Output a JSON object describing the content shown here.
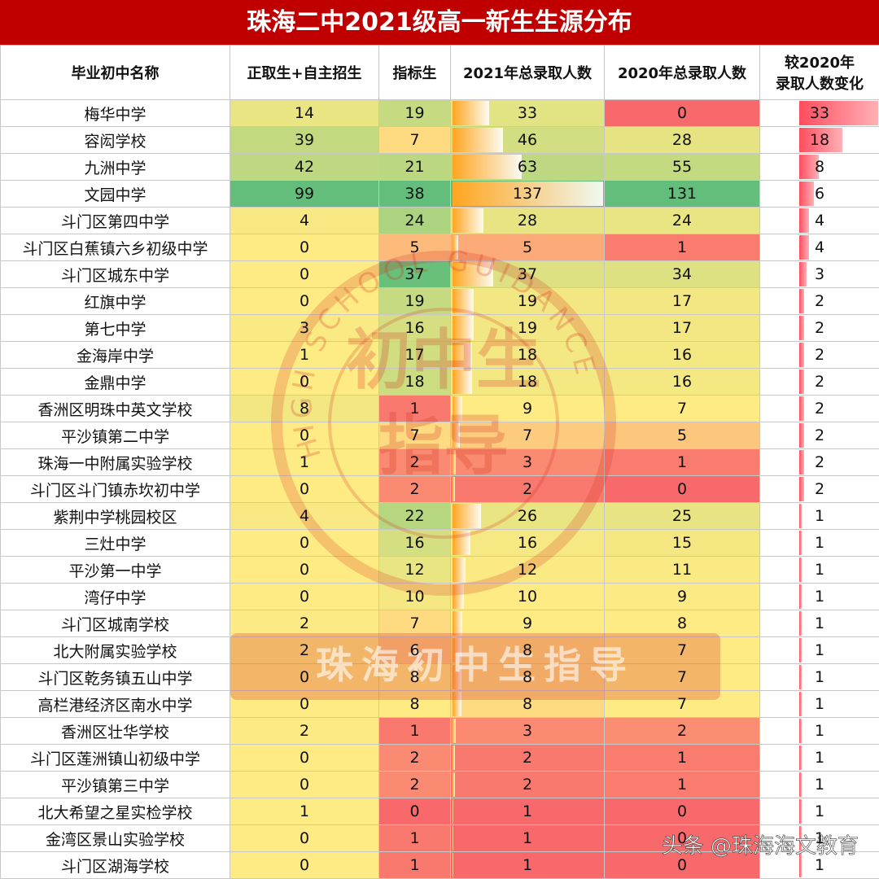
{
  "table": {
    "title": "珠海二中2021级高一新生生源分布",
    "headers": [
      "毕业初中名称",
      "正取生+自主招生",
      "指标生",
      "2021年总录取人数",
      "2020年总录取人数",
      "较2020年\n录取人数变化"
    ],
    "rows": [
      [
        "梅华中学",
        14,
        19,
        33,
        0,
        33
      ],
      [
        "容闳学校",
        39,
        7,
        46,
        28,
        18
      ],
      [
        "九洲中学",
        42,
        21,
        63,
        55,
        8
      ],
      [
        "文园中学",
        99,
        38,
        137,
        131,
        6
      ],
      [
        "斗门区第四中学",
        4,
        24,
        28,
        24,
        4
      ],
      [
        "斗门区白蕉镇六乡初级中学",
        0,
        5,
        5,
        1,
        4
      ],
      [
        "斗门区城东中学",
        0,
        37,
        37,
        34,
        3
      ],
      [
        "红旗中学",
        0,
        19,
        19,
        17,
        2
      ],
      [
        "第七中学",
        3,
        16,
        19,
        17,
        2
      ],
      [
        "金海岸中学",
        1,
        17,
        18,
        16,
        2
      ],
      [
        "金鼎中学",
        0,
        18,
        18,
        16,
        2
      ],
      [
        "香洲区明珠中英文学校",
        8,
        1,
        9,
        7,
        2
      ],
      [
        "平沙镇第二中学",
        0,
        7,
        7,
        5,
        2
      ],
      [
        "珠海一中附属实验学校",
        1,
        2,
        3,
        1,
        2
      ],
      [
        "斗门区斗门镇赤坎初中学",
        0,
        2,
        2,
        0,
        2
      ],
      [
        "紫荆中学桃园校区",
        4,
        22,
        26,
        25,
        1
      ],
      [
        "三灶中学",
        0,
        16,
        16,
        15,
        1
      ],
      [
        "平沙第一中学",
        0,
        12,
        12,
        11,
        1
      ],
      [
        "湾仔中学",
        0,
        10,
        10,
        9,
        1
      ],
      [
        "斗门区城南学校",
        2,
        7,
        9,
        8,
        1
      ],
      [
        "北大附属实验学校",
        2,
        6,
        8,
        7,
        1
      ],
      [
        "斗门区乾务镇五山中学",
        0,
        8,
        8,
        7,
        1
      ],
      [
        "高栏港经济区南水中学",
        0,
        8,
        8,
        7,
        1
      ],
      [
        "香洲区壮华学校",
        2,
        1,
        3,
        2,
        1
      ],
      [
        "斗门区莲洲镇山初级中学",
        0,
        2,
        2,
        1,
        1
      ],
      [
        "平沙镇第三中学",
        0,
        2,
        2,
        1,
        1
      ],
      [
        "北大希望之星实检学校",
        1,
        0,
        1,
        0,
        1
      ],
      [
        "金湾区景山实验学校",
        0,
        1,
        1,
        0,
        1
      ],
      [
        "斗门区湖海学校",
        0,
        1,
        1,
        0,
        1
      ]
    ]
  },
  "watermark": {
    "seal_arc": "HIGH SCHOOL GUIDANCE",
    "seal_line1": "初中生",
    "seal_line2": "指导",
    "banner": "珠海初中生指导",
    "credit": "头条 @珠海海文教育"
  }
}
